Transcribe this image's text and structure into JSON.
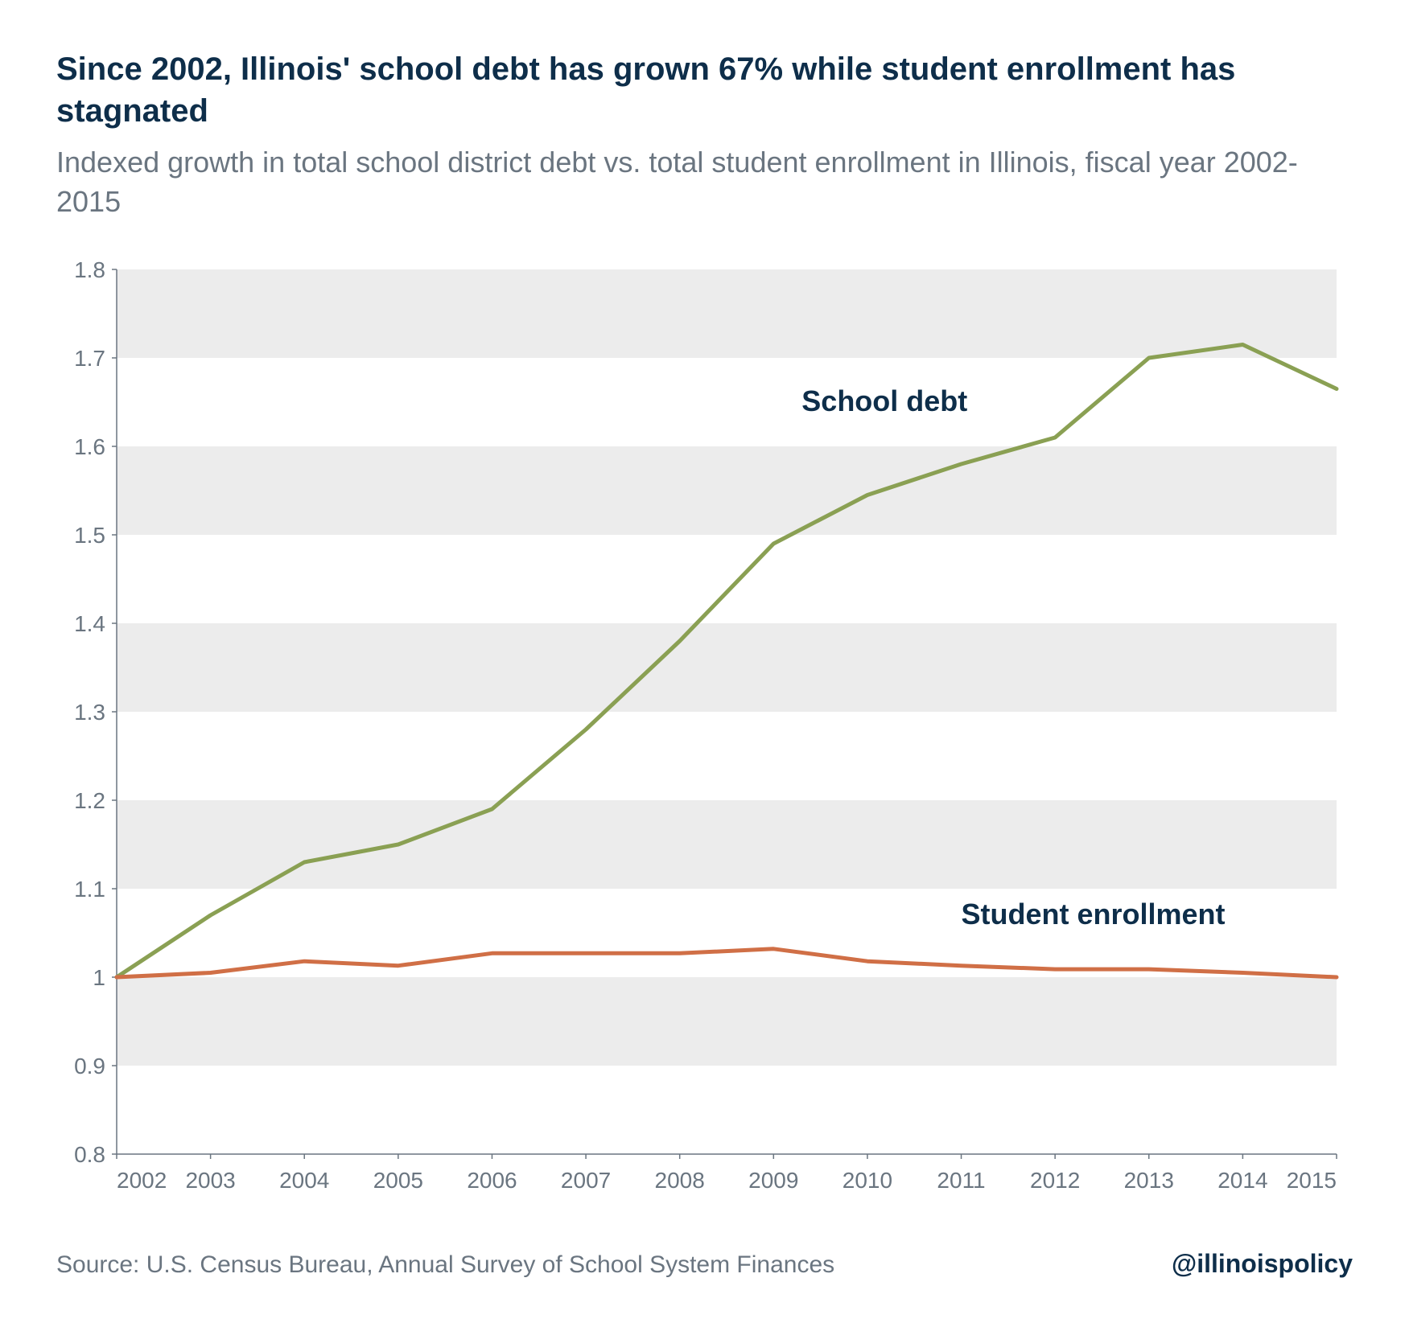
{
  "title": "Since 2002, Illinois' school debt has grown 67% while student enrollment has stagnated",
  "subtitle": "Indexed growth in total school district debt vs. total student enrollment in Illinois, fiscal year 2002-2015",
  "source": "Source: U.S. Census Bureau, Annual Survey of School System Finances",
  "handle": "@illinoispolicy",
  "chart": {
    "type": "line",
    "background_color": "#ffffff",
    "gridband_color": "#ececec",
    "axis_line_color": "#6a7580",
    "tick_label_color": "#6a7580",
    "tick_fontsize": 28,
    "label_fontsize": 36,
    "label_color": "#0e2e4a",
    "line_width": 5,
    "ylim": [
      0.8,
      1.8
    ],
    "ytick_step": 0.1,
    "yticks": [
      "0.8",
      "0.9",
      "1",
      "1.1",
      "1.2",
      "1.3",
      "1.4",
      "1.5",
      "1.6",
      "1.7",
      "1.8"
    ],
    "xticks": [
      "2002",
      "2003",
      "2004",
      "2005",
      "2006",
      "2007",
      "2008",
      "2009",
      "2010",
      "2011",
      "2012",
      "2013",
      "2014",
      "2015"
    ],
    "series": [
      {
        "name": "School debt",
        "color": "#8aa053",
        "label_x": 2009.3,
        "label_y": 1.64,
        "values": [
          1.0,
          1.07,
          1.13,
          1.15,
          1.19,
          1.28,
          1.38,
          1.49,
          1.545,
          1.58,
          1.61,
          1.7,
          1.715,
          1.665
        ]
      },
      {
        "name": "Student enrollment",
        "color": "#d06f46",
        "label_x": 2011.0,
        "label_y": 1.06,
        "values": [
          1.0,
          1.005,
          1.018,
          1.013,
          1.027,
          1.027,
          1.027,
          1.032,
          1.018,
          1.013,
          1.009,
          1.009,
          1.005,
          1.0
        ]
      }
    ]
  }
}
